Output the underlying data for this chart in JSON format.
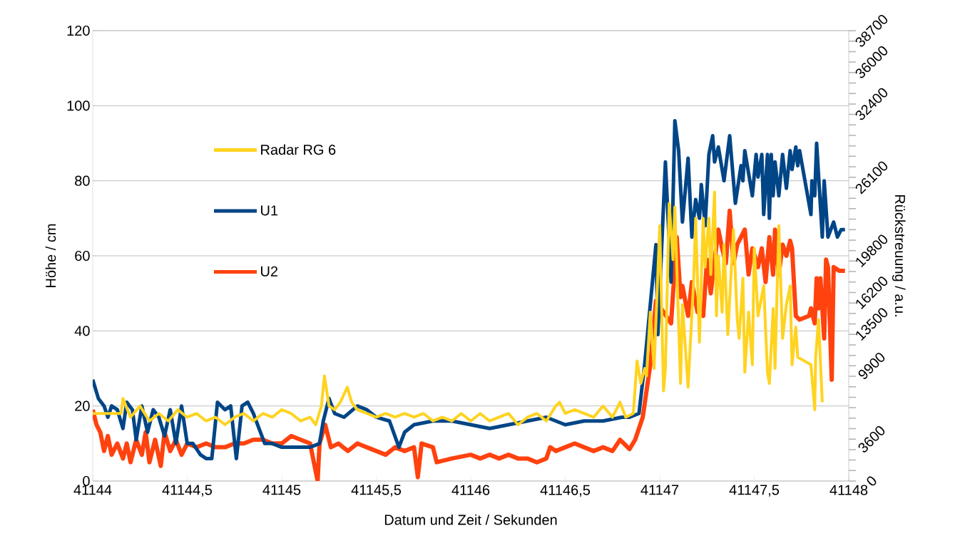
{
  "chart_data": {
    "type": "line",
    "xlabel": "Datum und Zeit / Sekunden",
    "ylabel": "Höhe / cm",
    "y2label": "Rückstreuung / a.u.",
    "xlim": [
      41144,
      41148
    ],
    "ylim": [
      0,
      120
    ],
    "y2lim": [
      0,
      38700
    ],
    "grid": "y",
    "legend": "left",
    "marker": "none",
    "xticks": [
      41144,
      {
        "value": 41144.5,
        "label": "41144,5"
      },
      41145,
      {
        "value": 41145.5,
        "label": "41145,5"
      },
      41146,
      {
        "value": 41146.5,
        "label": "41146,5"
      },
      41147,
      {
        "value": 41147.5,
        "label": "41147,5"
      },
      41148
    ],
    "yticks": [
      0,
      20,
      40,
      60,
      80,
      100,
      120
    ],
    "y2ticks": [
      0,
      {
        "value": 900,
        "label": null
      },
      {
        "value": 1800,
        "label": null
      },
      {
        "value": 2700,
        "label": null
      },
      3600,
      {
        "value": 4500,
        "label": null
      },
      {
        "value": 5400,
        "label": null
      },
      {
        "value": 6300,
        "label": null
      },
      {
        "value": 7200,
        "label": null
      },
      {
        "value": 8100,
        "label": null
      },
      {
        "value": 9000,
        "label": null
      },
      9900,
      {
        "value": 10800,
        "label": null
      },
      {
        "value": 11700,
        "label": null
      },
      {
        "value": 12600,
        "label": null
      },
      13500,
      {
        "value": 14400,
        "label": null
      },
      {
        "value": 15300,
        "label": null
      },
      16200,
      {
        "value": 17100,
        "label": null
      },
      {
        "value": 18000,
        "label": null
      },
      {
        "value": 18900,
        "label": null
      },
      19800,
      {
        "value": 20700,
        "label": null
      },
      {
        "value": 21600,
        "label": null
      },
      {
        "value": 22500,
        "label": null
      },
      {
        "value": 23400,
        "label": null
      },
      {
        "value": 24300,
        "label": null
      },
      {
        "value": 25200,
        "label": null
      },
      26100,
      {
        "value": 27000,
        "label": null
      },
      {
        "value": 27900,
        "label": null
      },
      {
        "value": 28800,
        "label": null
      },
      {
        "value": 29700,
        "label": null
      },
      {
        "value": 30600,
        "label": null
      },
      {
        "value": 31500,
        "label": null
      },
      32400,
      {
        "value": 33300,
        "label": null
      },
      {
        "value": 34200,
        "label": null
      },
      {
        "value": 35100,
        "label": null
      },
      36000,
      {
        "value": 36900,
        "label": null
      },
      {
        "value": 37800,
        "label": null
      },
      38700
    ],
    "series": [
      {
        "name": "Radar RG 6",
        "color": "#ffd320",
        "x": [
          41144.0,
          41144.15,
          41144.16,
          41144.2,
          41144.25,
          41144.3,
          41144.35,
          41144.4,
          41144.45,
          41144.5,
          41144.55,
          41144.6,
          41144.65,
          41144.7,
          41144.75,
          41144.8,
          41144.85,
          41144.9,
          41144.95,
          41145.0,
          41145.05,
          41145.1,
          41145.15,
          41145.18,
          41145.21,
          41145.226,
          41145.25,
          41145.28,
          41145.31,
          41145.347,
          41145.37,
          41145.4,
          41145.45,
          41145.5,
          41145.55,
          41145.6,
          41145.65,
          41145.7,
          41145.75,
          41145.8,
          41145.85,
          41145.9,
          41145.95,
          41146.0,
          41146.05,
          41146.1,
          41146.15,
          41146.2,
          41146.25,
          41146.3,
          41146.35,
          41146.4,
          41146.45,
          41146.47,
          41146.5,
          41146.55,
          41146.6,
          41146.65,
          41146.7,
          41146.75,
          41146.79,
          41146.82,
          41146.86,
          41146.88,
          41146.9,
          41146.92,
          41146.93,
          41146.95,
          41146.97,
          41147.0,
          41147.02,
          41147.03,
          41147.05,
          41147.07,
          41147.08,
          41147.11,
          41147.12,
          41147.15,
          41147.18,
          41147.19,
          41147.21,
          41147.23,
          41147.24,
          41147.26,
          41147.27,
          41147.29,
          41147.3,
          41147.31,
          41147.33,
          41147.34,
          41147.36,
          41147.39,
          41147.41,
          41147.42,
          41147.44,
          41147.45,
          41147.47,
          41147.49,
          41147.5,
          41147.52,
          41147.55,
          41147.57,
          41147.58,
          41147.6,
          41147.61,
          41147.63,
          41147.65,
          41147.67,
          41147.69,
          41147.7,
          41147.72,
          41147.73,
          41147.8,
          41147.82,
          41147.825,
          41147.84,
          41147.86
        ],
        "values": [
          18,
          18,
          22,
          17,
          20,
          16,
          18,
          16,
          19,
          17,
          18,
          16,
          17,
          15,
          17,
          18,
          16,
          18,
          17,
          19,
          18,
          16,
          17,
          15,
          20,
          28,
          20,
          19,
          21,
          25,
          21,
          19,
          18,
          17,
          18,
          17,
          18,
          17,
          18,
          16,
          17,
          16,
          18,
          16,
          18,
          16,
          17,
          18,
          15,
          17,
          18,
          16,
          20,
          21,
          18,
          19,
          18,
          17,
          20,
          17,
          21,
          17,
          18,
          32,
          26,
          30,
          28,
          45,
          30,
          68,
          24,
          30,
          74,
          59,
          73,
          26,
          47,
          25,
          54,
          70,
          37,
          70,
          57,
          70,
          55,
          77,
          44,
          60,
          45,
          63,
          39,
          67,
          43,
          38,
          54,
          29,
          45,
          31,
          62,
          44,
          52,
          29,
          26,
          46,
          30,
          68,
          38,
          47,
          52,
          31,
          41,
          33,
          31,
          19,
          33,
          43,
          21
        ]
      },
      {
        "name": "U1",
        "color": "#004586",
        "x": [
          41144.0,
          41144.03,
          41144.06,
          41144.08,
          41144.1,
          41144.13,
          41144.16,
          41144.18,
          41144.21,
          41144.23,
          41144.26,
          41144.29,
          41144.32,
          41144.35,
          41144.38,
          41144.41,
          41144.44,
          41144.47,
          41144.5,
          41144.53,
          41144.57,
          41144.6,
          41144.63,
          41144.66,
          41144.7,
          41144.73,
          41144.76,
          41144.79,
          41144.82,
          41144.85,
          41144.88,
          41144.91,
          41144.95,
          41145.0,
          41145.1,
          41145.15,
          41145.2,
          41145.22,
          41145.25,
          41145.28,
          41145.33,
          41145.4,
          41145.45,
          41145.5,
          41145.57,
          41145.62,
          41145.65,
          41145.7,
          41145.8,
          41145.9,
          41146.0,
          41146.1,
          41146.2,
          41146.3,
          41146.4,
          41146.5,
          41146.6,
          41146.7,
          41146.8,
          41146.84,
          41146.89,
          41146.92,
          41146.98,
          41146.99,
          41147.03,
          41147.06,
          41147.08,
          41147.1,
          41147.12,
          41147.15,
          41147.17,
          41147.19,
          41147.21,
          41147.22,
          41147.24,
          41147.26,
          41147.28,
          41147.29,
          41147.31,
          41147.34,
          41147.37,
          41147.4,
          41147.43,
          41147.44,
          41147.45,
          41147.49,
          41147.51,
          41147.52,
          41147.54,
          41147.55,
          41147.57,
          41147.58,
          41147.59,
          41147.6,
          41147.61,
          41147.63,
          41147.65,
          41147.67,
          41147.69,
          41147.7,
          41147.72,
          41147.73,
          41147.74,
          41147.8,
          41147.805,
          41147.82,
          41147.83,
          41147.86,
          41147.87,
          41147.89,
          41147.92,
          41147.94,
          41147.96,
          41147.98
        ],
        "values": [
          27,
          22,
          20,
          17,
          20,
          19,
          14,
          21,
          19,
          11,
          20,
          13,
          19,
          17,
          12,
          19,
          10,
          20,
          10,
          10,
          7,
          6,
          6,
          21,
          19,
          20,
          6,
          20,
          21,
          18,
          14,
          10,
          10,
          9,
          9,
          9,
          10,
          16,
          22,
          18,
          17,
          20,
          19,
          17,
          16,
          9,
          13,
          15,
          16,
          16,
          15,
          14,
          15,
          16,
          17,
          15,
          16,
          16,
          17,
          17,
          18,
          31,
          63,
          39,
          85,
          53,
          96,
          88,
          69,
          86,
          65,
          75,
          70,
          79,
          68,
          87,
          92,
          85,
          89,
          80,
          92,
          74,
          84,
          80,
          88,
          76,
          87,
          81,
          87,
          71,
          87,
          70,
          87,
          76,
          85,
          76,
          87,
          78,
          88,
          83,
          89,
          84,
          88,
          71,
          80,
          76,
          90,
          65,
          80,
          65,
          69,
          65,
          67,
          67
        ]
      },
      {
        "name": "U2",
        "color": "#ff420e",
        "x": [
          41144.0,
          41144.02,
          41144.04,
          41144.06,
          41144.08,
          41144.1,
          41144.13,
          41144.16,
          41144.18,
          41144.2,
          41144.23,
          41144.26,
          41144.28,
          41144.3,
          41144.33,
          41144.36,
          41144.38,
          41144.41,
          41144.44,
          41144.47,
          41144.5,
          41144.55,
          41144.6,
          41144.65,
          41144.7,
          41144.75,
          41144.8,
          41144.85,
          41144.9,
          41144.95,
          41145.0,
          41145.05,
          41145.1,
          41145.15,
          41145.19,
          41145.2,
          41145.23,
          41145.26,
          41145.3,
          41145.35,
          41145.4,
          41145.45,
          41145.5,
          41145.55,
          41145.6,
          41145.65,
          41145.7,
          41145.72,
          41145.74,
          41145.8,
          41145.82,
          41145.9,
          41146.0,
          41146.05,
          41146.1,
          41146.15,
          41146.2,
          41146.25,
          41146.3,
          41146.35,
          41146.4,
          41146.42,
          41146.45,
          41146.5,
          41146.55,
          41146.6,
          41146.65,
          41146.7,
          41146.75,
          41146.79,
          41146.84,
          41146.87,
          41146.91,
          41146.95,
          41146.98,
          41147.06,
          41147.09,
          41147.11,
          41147.12,
          41147.15,
          41147.17,
          41147.2,
          41147.23,
          41147.25,
          41147.27,
          41147.31,
          41147.33,
          41147.35,
          41147.37,
          41147.39,
          41147.41,
          41147.45,
          41147.47,
          41147.49,
          41147.52,
          41147.54,
          41147.56,
          41147.58,
          41147.6,
          41147.61,
          41147.63,
          41147.65,
          41147.67,
          41147.69,
          41147.7,
          41147.72,
          41147.74,
          41147.79,
          41147.8,
          41147.82,
          41147.83,
          41147.84,
          41147.85,
          41147.87,
          41147.88,
          41147.89,
          41147.91,
          41147.92,
          41147.95,
          41147.98
        ],
        "values": [
          19,
          15,
          13,
          8,
          12,
          7,
          10,
          6,
          10,
          5,
          11,
          7,
          13,
          5,
          11,
          4,
          13,
          8,
          11,
          7,
          10,
          9,
          10,
          9,
          9,
          10,
          10,
          11,
          11,
          10,
          10,
          12,
          11,
          10,
          0,
          10,
          15,
          9,
          10,
          8,
          10,
          9,
          8,
          7,
          9,
          8,
          9,
          1,
          10,
          9,
          5,
          6,
          7,
          6,
          7,
          6,
          7,
          6,
          6,
          5,
          6,
          9,
          8,
          9,
          10,
          9,
          8,
          9,
          8,
          11,
          8.5,
          11,
          17,
          31,
          48,
          42,
          65,
          49,
          52,
          44,
          53,
          45,
          44,
          59,
          50,
          67,
          62,
          58,
          72,
          58,
          63,
          67,
          55,
          62,
          57,
          62,
          53,
          65,
          55,
          67,
          55,
          63,
          60,
          64,
          62,
          44,
          43,
          44,
          46,
          42,
          54,
          46,
          54,
          38,
          59,
          57,
          27,
          57,
          56,
          56
        ]
      }
    ]
  }
}
